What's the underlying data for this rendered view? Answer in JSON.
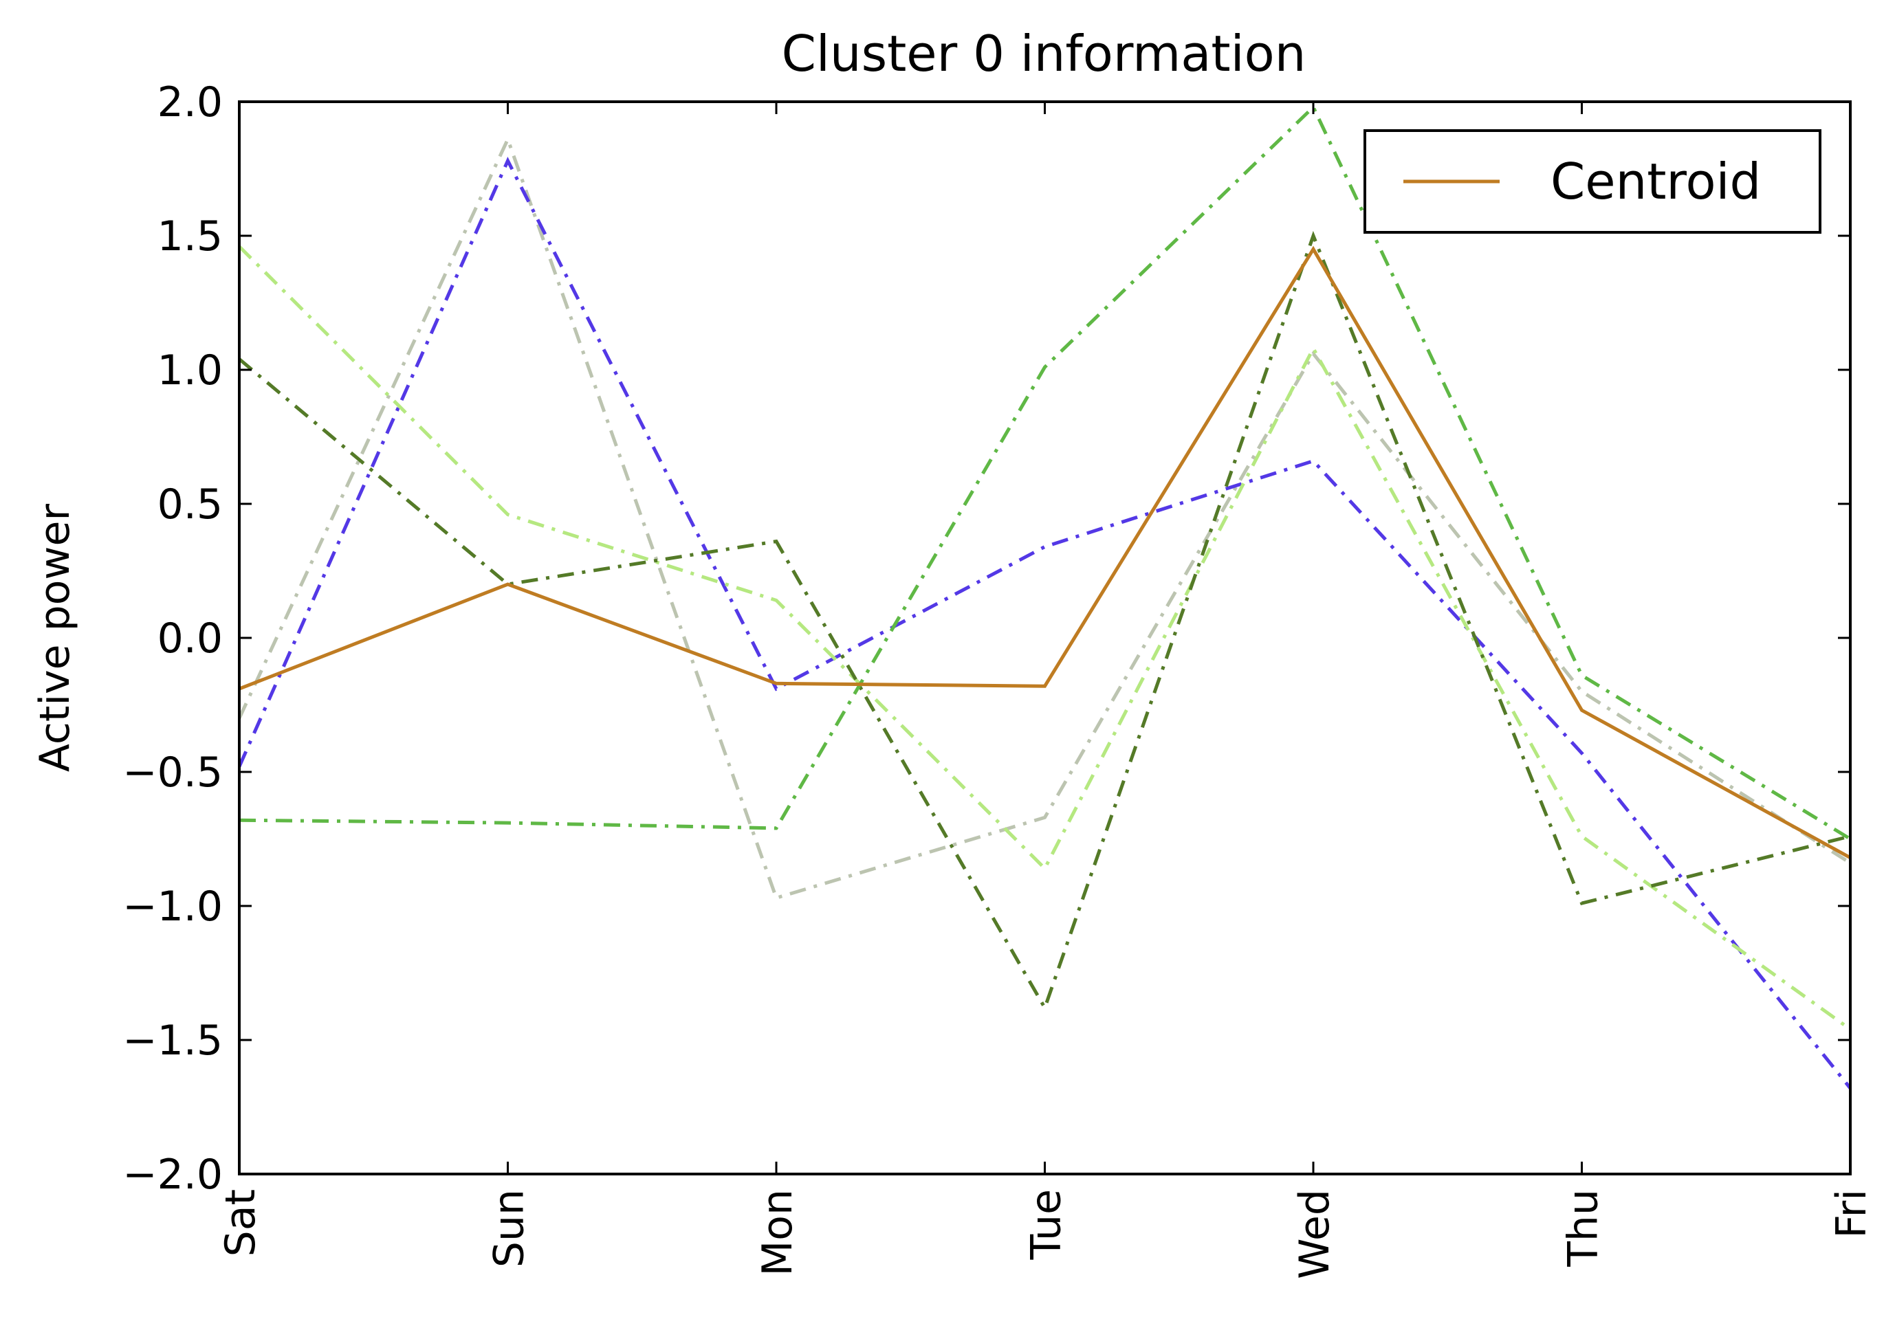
{
  "chart_data": {
    "type": "line",
    "title": "Cluster 0 information",
    "xlabel": "",
    "ylabel": "Active power",
    "categories": [
      "Sat",
      "Sun",
      "Mon",
      "Tue",
      "Wed",
      "Thu",
      "Fri"
    ],
    "ylim": [
      -2.0,
      2.0
    ],
    "yticks": [
      2.0,
      1.5,
      1.0,
      0.5,
      0.0,
      -0.5,
      -1.0,
      -1.5,
      -2.0
    ],
    "ytick_labels": [
      "2.0",
      "1.5",
      "1.0",
      "0.5",
      "0.0",
      "−0.5",
      "−1.0",
      "−1.5",
      "−2.0"
    ],
    "grid": false,
    "legend_position": "top-right",
    "series": [
      {
        "name": "Centroid",
        "style": "solid",
        "color": "#bf7c22",
        "values": [
          -0.19,
          0.2,
          -0.17,
          -0.18,
          1.45,
          -0.27,
          -0.82
        ]
      },
      {
        "style": "dashdot",
        "color": "#bcc4b0",
        "values": [
          -0.3,
          1.86,
          -0.97,
          -0.67,
          1.06,
          -0.2,
          -0.84
        ]
      },
      {
        "style": "dashdot",
        "color": "#5338e6",
        "values": [
          -0.48,
          1.78,
          -0.19,
          0.34,
          0.66,
          -0.43,
          -1.68
        ]
      },
      {
        "style": "dashdot",
        "color": "#b5e880",
        "values": [
          1.46,
          0.46,
          0.14,
          -0.86,
          1.08,
          -0.74,
          -1.46
        ]
      },
      {
        "style": "dashdot",
        "color": "#547a27",
        "values": [
          1.04,
          0.2,
          0.36,
          -1.38,
          1.5,
          -0.99,
          -0.74
        ]
      },
      {
        "style": "dashdot",
        "color": "#5fb845",
        "values": [
          -0.68,
          -0.69,
          -0.71,
          1.01,
          1.98,
          -0.14,
          -0.75
        ]
      }
    ]
  }
}
